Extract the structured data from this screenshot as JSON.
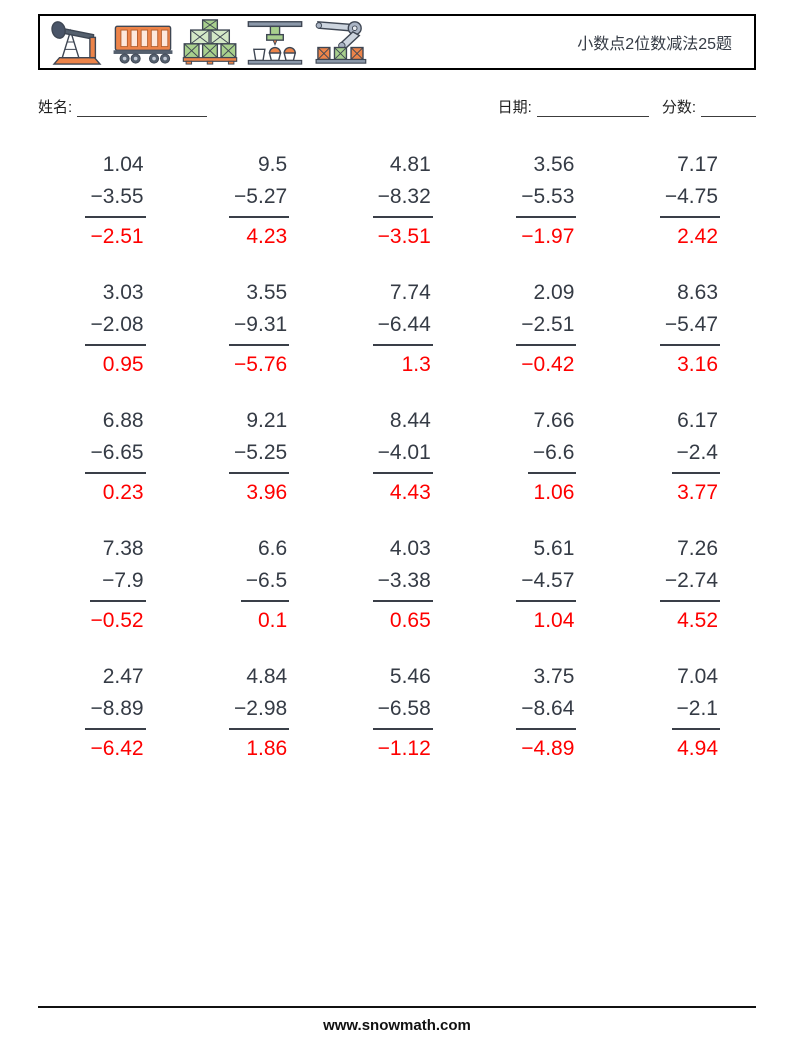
{
  "header": {
    "title": "小数点2位数减法25题",
    "icons": [
      "pumpjack-icon",
      "freight-car-icon",
      "crate-stack-icon",
      "filling-machine-icon",
      "robot-arm-icon"
    ]
  },
  "fields": {
    "name_label": "姓名:",
    "date_label": "日期:",
    "score_label": "分数:"
  },
  "problems": [
    {
      "minuend": "1.04",
      "subtrahend": "−3.55",
      "answer": "−2.51"
    },
    {
      "minuend": "9.5",
      "subtrahend": "−5.27",
      "answer": "4.23"
    },
    {
      "minuend": "4.81",
      "subtrahend": "−8.32",
      "answer": "−3.51"
    },
    {
      "minuend": "3.56",
      "subtrahend": "−5.53",
      "answer": "−1.97"
    },
    {
      "minuend": "7.17",
      "subtrahend": "−4.75",
      "answer": "2.42"
    },
    {
      "minuend": "3.03",
      "subtrahend": "−2.08",
      "answer": "0.95"
    },
    {
      "minuend": "3.55",
      "subtrahend": "−9.31",
      "answer": "−5.76"
    },
    {
      "minuend": "7.74",
      "subtrahend": "−6.44",
      "answer": "1.3"
    },
    {
      "minuend": "2.09",
      "subtrahend": "−2.51",
      "answer": "−0.42"
    },
    {
      "minuend": "8.63",
      "subtrahend": "−5.47",
      "answer": "3.16"
    },
    {
      "minuend": "6.88",
      "subtrahend": "−6.65",
      "answer": "0.23"
    },
    {
      "minuend": "9.21",
      "subtrahend": "−5.25",
      "answer": "3.96"
    },
    {
      "minuend": "8.44",
      "subtrahend": "−4.01",
      "answer": "4.43"
    },
    {
      "minuend": "7.66",
      "subtrahend": "−6.6",
      "answer": "1.06"
    },
    {
      "minuend": "6.17",
      "subtrahend": "−2.4",
      "answer": "3.77"
    },
    {
      "minuend": "7.38",
      "subtrahend": "−7.9",
      "answer": "−0.52"
    },
    {
      "minuend": "6.6",
      "subtrahend": "−6.5",
      "answer": "0.1"
    },
    {
      "minuend": "4.03",
      "subtrahend": "−3.38",
      "answer": "0.65"
    },
    {
      "minuend": "5.61",
      "subtrahend": "−4.57",
      "answer": "1.04"
    },
    {
      "minuend": "7.26",
      "subtrahend": "−2.74",
      "answer": "4.52"
    },
    {
      "minuend": "2.47",
      "subtrahend": "−8.89",
      "answer": "−6.42"
    },
    {
      "minuend": "4.84",
      "subtrahend": "−2.98",
      "answer": "1.86"
    },
    {
      "minuend": "5.46",
      "subtrahend": "−6.58",
      "answer": "−1.12"
    },
    {
      "minuend": "3.75",
      "subtrahend": "−8.64",
      "answer": "−4.89"
    },
    {
      "minuend": "7.04",
      "subtrahend": "−2.1",
      "answer": "4.94"
    }
  ],
  "footer": {
    "website": "www.snowmath.com"
  },
  "colors": {
    "answer": "#fe0000",
    "text": "#353b45",
    "icon_orange": "#ed8449",
    "icon_green": "#a8d08d",
    "icon_gray": "#8b98a9"
  }
}
